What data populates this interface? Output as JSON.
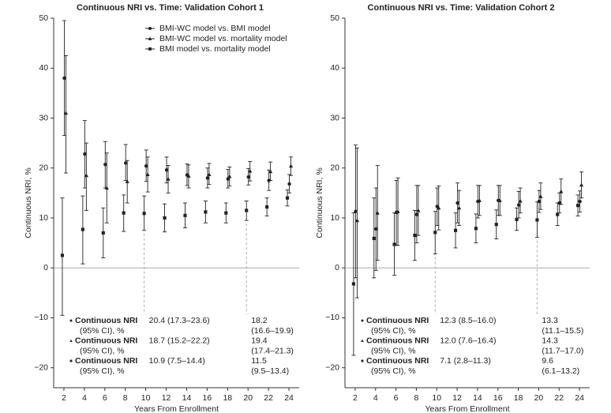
{
  "chart_data": [
    {
      "type": "errorbar",
      "title": "Continuous NRI vs. Time: Validation Cohort 1",
      "x_label": "Years From Enrollment",
      "y_label": "Continuous NRI, %",
      "x": [
        2,
        4,
        6,
        8,
        10,
        12,
        14,
        16,
        18,
        20,
        22,
        24
      ],
      "xlim": [
        1,
        25
      ],
      "xticks": [
        2,
        4,
        6,
        8,
        10,
        12,
        14,
        16,
        18,
        20,
        22,
        24
      ],
      "ylim": [
        -24,
        50
      ],
      "yticks": [
        {
          "value": -20,
          "label": "−20"
        },
        {
          "value": -10,
          "label": "−10"
        },
        0,
        10,
        20,
        30,
        40,
        50
      ],
      "hline": 0,
      "vlines": [
        10,
        20
      ],
      "legend": true,
      "series": [
        {
          "name": "BMI-WC model vs. BMI model",
          "marker": "circle",
          "color": "#222",
          "values": [
            38,
            22.8,
            20.7,
            21,
            20.4,
            19.6,
            18.6,
            18,
            17.8,
            18.2,
            17.5,
            16.8
          ],
          "lower": [
            26.5,
            16,
            16,
            17.5,
            17.3,
            17,
            16.5,
            16,
            16,
            16.6,
            15.5,
            15
          ],
          "upper": [
            49.5,
            29.5,
            25.3,
            24.7,
            23.6,
            22.2,
            20.8,
            20,
            19.7,
            19.9,
            19.6,
            18.7
          ]
        },
        {
          "name": "BMI-WC model vs. mortality model",
          "marker": "triangle",
          "color": "#222",
          "values": [
            31,
            18.5,
            16,
            17.3,
            18.7,
            17.8,
            18.4,
            18.7,
            18.3,
            19.4,
            19.3,
            20.4
          ],
          "lower": [
            19,
            11.5,
            9,
            13,
            15.2,
            15,
            16,
            16.7,
            16.4,
            17.4,
            17.5,
            18.5
          ],
          "upper": [
            42.5,
            25,
            23,
            21.5,
            22.2,
            20.5,
            20.6,
            20.9,
            20.2,
            21.3,
            21.2,
            22.2
          ]
        },
        {
          "name": "BMI model vs. mortality model",
          "marker": "square",
          "color": "#222",
          "values": [
            2.5,
            7.7,
            7,
            11,
            10.9,
            10,
            10.5,
            11.2,
            11,
            11.5,
            12.2,
            14
          ],
          "lower": [
            -9.5,
            0.8,
            2,
            7.3,
            7.5,
            7.2,
            8,
            9,
            9,
            9.5,
            10.4,
            12.4
          ],
          "upper": [
            14,
            14.4,
            12,
            14.6,
            14.4,
            12.8,
            13,
            13.4,
            13,
            13.4,
            14,
            15.6
          ]
        }
      ],
      "table": [
        {
          "label": "Continuous NRI",
          "sublabel": "(95% CI), %",
          "cells": [
            [
              "20.4 (17.3–23.6)"
            ],
            [
              "18.2",
              "(16.6–19.9)"
            ]
          ]
        },
        {
          "label": "Continuous NRI",
          "sublabel": "(95% CI), %",
          "cells": [
            [
              "18.7 (15.2–22.2)"
            ],
            [
              "19.4",
              "(17.4–21.3)"
            ]
          ]
        },
        {
          "label": "Continuous NRI",
          "sublabel": "(95% CI), %",
          "cells": [
            [
              "10.9 (7.5–14.4)"
            ],
            [
              "11.5",
              "(9.5–13.4)"
            ]
          ]
        }
      ]
    },
    {
      "type": "errorbar",
      "title": "Continuous NRI vs. Time: Validation Cohort 2",
      "x_label": "Years From Enrollment",
      "y_label": "Continuous NRI, %",
      "x": [
        2,
        4,
        6,
        8,
        10,
        12,
        14,
        16,
        18,
        20,
        22,
        24
      ],
      "xlim": [
        1,
        25
      ],
      "xticks": [
        2,
        4,
        6,
        8,
        10,
        12,
        14,
        16,
        18,
        20,
        22,
        24
      ],
      "ylim": [
        -24,
        50
      ],
      "yticks": [
        {
          "value": -20,
          "label": "−20"
        },
        {
          "value": -10,
          "label": "−10"
        },
        0,
        10,
        20,
        30,
        40,
        50
      ],
      "hline": 0,
      "vlines": [
        10,
        20
      ],
      "legend": false,
      "series": [
        {
          "marker": "circle",
          "color": "#222",
          "values": [
            11.3,
            7.8,
            11.1,
            10.7,
            12.3,
            13,
            13.3,
            13.5,
            12.6,
            13.3,
            13,
            13.3
          ],
          "lower": [
            -2,
            -0.5,
            4.5,
            5,
            8.5,
            9,
            10,
            10.5,
            10,
            11.1,
            11,
            11.2
          ],
          "upper": [
            24.6,
            16,
            17.5,
            16.5,
            16,
            17,
            16.5,
            16.5,
            15.3,
            15.5,
            15,
            15.4
          ]
        },
        {
          "marker": "triangle",
          "color": "#222",
          "values": [
            9.5,
            11,
            11.3,
            11.5,
            12,
            12,
            13.5,
            13.5,
            13.4,
            14.3,
            15.3,
            16.6
          ],
          "lower": [
            -6,
            1.5,
            4.5,
            6.5,
            7.6,
            8.5,
            10.5,
            10.5,
            11,
            11.7,
            12.7,
            14
          ],
          "upper": [
            24,
            20.5,
            18,
            16.5,
            16.4,
            15.5,
            16.5,
            16.5,
            16,
            17,
            17.8,
            19.2
          ]
        },
        {
          "marker": "square",
          "color": "#222",
          "values": [
            -3.2,
            5.9,
            4.7,
            6.5,
            7.1,
            7.5,
            7.9,
            8.7,
            9.7,
            9.6,
            10.7,
            12.5
          ],
          "lower": [
            -17.5,
            -2,
            -1.5,
            1.5,
            2.8,
            4,
            5,
            5.8,
            7.5,
            6.1,
            8.5,
            10.4
          ],
          "upper": [
            11,
            14,
            11,
            11.5,
            11.3,
            11,
            10.8,
            11.6,
            12,
            13.2,
            13,
            14.6
          ]
        }
      ],
      "table": [
        {
          "label": "Continuous NRI",
          "sublabel": "(95% CI), %",
          "cells": [
            [
              "12.3 (8.5–16.0)"
            ],
            [
              "13.3",
              "(11.1–15.5)"
            ]
          ]
        },
        {
          "label": "Continuous NRI",
          "sublabel": "(95% CI), %",
          "cells": [
            [
              "12.0 (7.6–16.4)"
            ],
            [
              "14.3",
              "(11.7–17.0)"
            ]
          ]
        },
        {
          "label": "Continuous NRI",
          "sublabel": "(95% CI), %",
          "cells": [
            [
              "7.1 (2.8–11.3)"
            ],
            [
              "9.6",
              "(6.1–13.2)"
            ]
          ]
        }
      ]
    }
  ]
}
